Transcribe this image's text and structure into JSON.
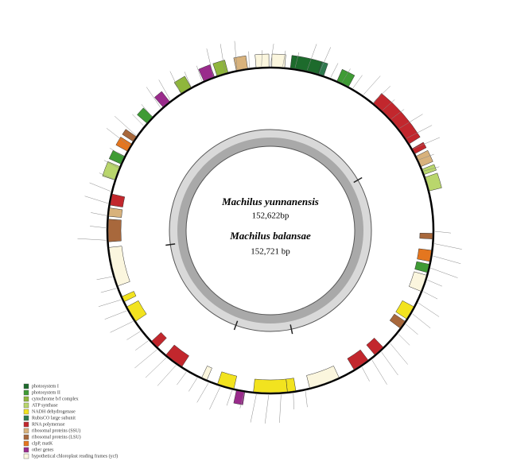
{
  "center": {
    "species": [
      {
        "name": "Machilus yunnanensis",
        "length": "152,622bp"
      },
      {
        "name": "Machilus balansae",
        "length": "152,721 bp"
      }
    ]
  },
  "legend": [
    {
      "label": "photosystem I",
      "color": "#1d6b2c"
    },
    {
      "label": "photosystem II",
      "color": "#3f9b35"
    },
    {
      "label": "cytochrome b/f complex",
      "color": "#8fb63c"
    },
    {
      "label": "ATP synthase",
      "color": "#b9d66c"
    },
    {
      "label": "NADH dehydrogenase",
      "color": "#f2e31f"
    },
    {
      "label": "RubisCO large subunit",
      "color": "#2f7a4f"
    },
    {
      "label": "RNA polymerase",
      "color": "#c2272d"
    },
    {
      "label": "ribosomal proteins (SSU)",
      "color": "#d8b27c"
    },
    {
      "label": "ribosomal proteins (LSU)",
      "color": "#a8683c"
    },
    {
      "label": "clpP, matK",
      "color": "#e4761f"
    },
    {
      "label": "other genes",
      "color": "#9a2b8c"
    },
    {
      "label": "hypothetical chloroplast reading frames (ycf)",
      "color": "#fbf6de"
    }
  ]
}
